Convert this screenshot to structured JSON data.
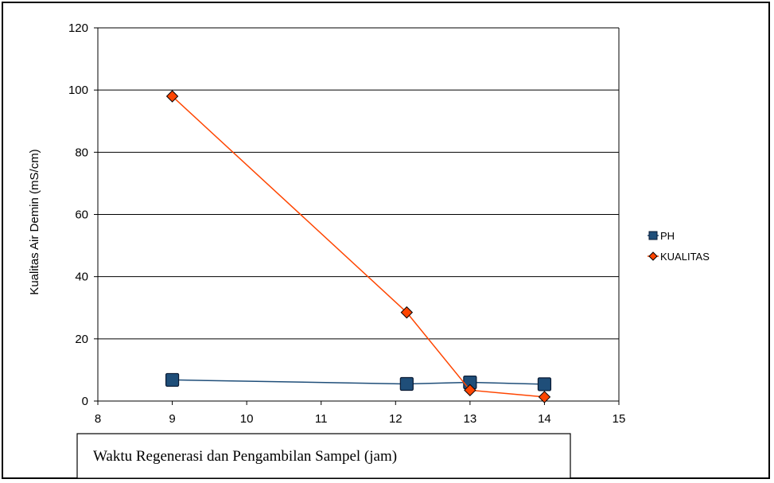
{
  "chart_data": {
    "type": "line",
    "title": "",
    "xlabel": "Waktu Regenerasi dan Pengambilan Sampel (jam)",
    "ylabel": "Kualitas Air Demin (mS/cm)",
    "xlim": [
      8,
      15
    ],
    "ylim": [
      0,
      120
    ],
    "xticks": [
      "8",
      "9",
      "10",
      "11",
      "12",
      "13",
      "14",
      "15"
    ],
    "yticks": [
      "0",
      "20",
      "40",
      "60",
      "80",
      "100",
      "120"
    ],
    "grid": "horizontal",
    "legend_position": "right",
    "series": [
      {
        "name": "PH",
        "color": "#1F4E79",
        "marker": "square",
        "points": [
          {
            "x": 9,
            "y": 6.8
          },
          {
            "x": 12.15,
            "y": 5.5
          },
          {
            "x": 13,
            "y": 6.0
          },
          {
            "x": 14,
            "y": 5.4
          }
        ]
      },
      {
        "name": "KUALITAS",
        "color": "#FF4500",
        "marker": "diamond",
        "points": [
          {
            "x": 9,
            "y": 98
          },
          {
            "x": 12.15,
            "y": 28.5
          },
          {
            "x": 13,
            "y": 3.5
          },
          {
            "x": 14,
            "y": 1.3
          }
        ]
      }
    ]
  }
}
